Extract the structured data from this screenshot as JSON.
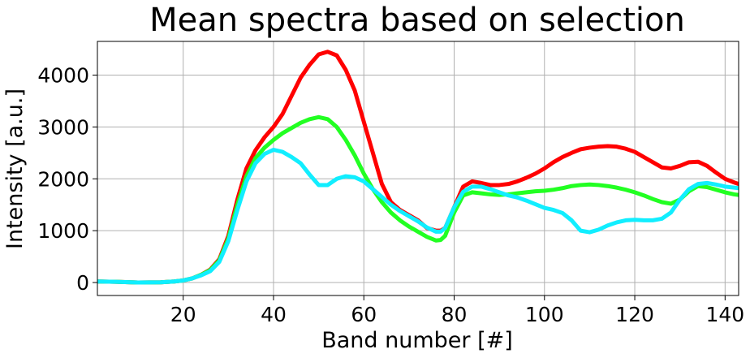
{
  "chart_data": {
    "type": "line",
    "title": "Mean spectra based on selection",
    "xlabel": "Band number [#]",
    "ylabel": "Intensity [a.u.]",
    "xlim": [
      1,
      143
    ],
    "ylim": [
      -250,
      4650
    ],
    "xticks": [
      20,
      40,
      60,
      80,
      100,
      120,
      140
    ],
    "yticks": [
      0,
      1000,
      2000,
      3000,
      4000
    ],
    "grid": true,
    "legend": "none",
    "series": [
      {
        "color": "#ff0000",
        "points": [
          [
            1,
            20
          ],
          [
            5,
            15
          ],
          [
            10,
            0
          ],
          [
            15,
            5
          ],
          [
            18,
            20
          ],
          [
            20,
            40
          ],
          [
            22,
            80
          ],
          [
            24,
            150
          ],
          [
            26,
            250
          ],
          [
            28,
            450
          ],
          [
            30,
            900
          ],
          [
            32,
            1600
          ],
          [
            34,
            2200
          ],
          [
            36,
            2550
          ],
          [
            38,
            2800
          ],
          [
            40,
            3000
          ],
          [
            42,
            3250
          ],
          [
            44,
            3600
          ],
          [
            46,
            3950
          ],
          [
            48,
            4200
          ],
          [
            50,
            4400
          ],
          [
            52,
            4450
          ],
          [
            54,
            4380
          ],
          [
            56,
            4100
          ],
          [
            58,
            3700
          ],
          [
            60,
            3100
          ],
          [
            62,
            2500
          ],
          [
            64,
            1900
          ],
          [
            66,
            1550
          ],
          [
            68,
            1400
          ],
          [
            70,
            1300
          ],
          [
            72,
            1200
          ],
          [
            74,
            1050
          ],
          [
            76,
            1000
          ],
          [
            77,
            1000
          ],
          [
            78,
            1050
          ],
          [
            80,
            1450
          ],
          [
            82,
            1850
          ],
          [
            84,
            1950
          ],
          [
            86,
            1920
          ],
          [
            88,
            1880
          ],
          [
            90,
            1880
          ],
          [
            92,
            1900
          ],
          [
            94,
            1950
          ],
          [
            96,
            2020
          ],
          [
            98,
            2100
          ],
          [
            100,
            2200
          ],
          [
            102,
            2320
          ],
          [
            104,
            2420
          ],
          [
            106,
            2500
          ],
          [
            108,
            2570
          ],
          [
            110,
            2600
          ],
          [
            112,
            2620
          ],
          [
            114,
            2630
          ],
          [
            116,
            2620
          ],
          [
            118,
            2580
          ],
          [
            120,
            2520
          ],
          [
            122,
            2420
          ],
          [
            124,
            2320
          ],
          [
            126,
            2220
          ],
          [
            128,
            2200
          ],
          [
            130,
            2250
          ],
          [
            132,
            2320
          ],
          [
            134,
            2330
          ],
          [
            136,
            2250
          ],
          [
            138,
            2120
          ],
          [
            140,
            2000
          ],
          [
            142,
            1930
          ],
          [
            143,
            1900
          ]
        ]
      },
      {
        "color": "#22ff22",
        "points": [
          [
            1,
            20
          ],
          [
            5,
            15
          ],
          [
            10,
            0
          ],
          [
            15,
            5
          ],
          [
            18,
            20
          ],
          [
            20,
            40
          ],
          [
            22,
            80
          ],
          [
            24,
            150
          ],
          [
            26,
            240
          ],
          [
            28,
            430
          ],
          [
            30,
            850
          ],
          [
            32,
            1500
          ],
          [
            34,
            2050
          ],
          [
            36,
            2400
          ],
          [
            38,
            2600
          ],
          [
            40,
            2750
          ],
          [
            42,
            2880
          ],
          [
            44,
            2980
          ],
          [
            46,
            3080
          ],
          [
            48,
            3150
          ],
          [
            50,
            3190
          ],
          [
            52,
            3150
          ],
          [
            54,
            3000
          ],
          [
            56,
            2750
          ],
          [
            58,
            2450
          ],
          [
            60,
            2100
          ],
          [
            62,
            1800
          ],
          [
            64,
            1550
          ],
          [
            66,
            1350
          ],
          [
            68,
            1200
          ],
          [
            70,
            1080
          ],
          [
            72,
            980
          ],
          [
            74,
            880
          ],
          [
            76,
            810
          ],
          [
            77,
            820
          ],
          [
            78,
            900
          ],
          [
            80,
            1350
          ],
          [
            82,
            1680
          ],
          [
            84,
            1740
          ],
          [
            86,
            1720
          ],
          [
            88,
            1700
          ],
          [
            90,
            1690
          ],
          [
            92,
            1700
          ],
          [
            94,
            1720
          ],
          [
            96,
            1740
          ],
          [
            98,
            1760
          ],
          [
            100,
            1770
          ],
          [
            102,
            1790
          ],
          [
            104,
            1820
          ],
          [
            106,
            1860
          ],
          [
            108,
            1880
          ],
          [
            110,
            1890
          ],
          [
            112,
            1880
          ],
          [
            114,
            1860
          ],
          [
            116,
            1830
          ],
          [
            118,
            1790
          ],
          [
            120,
            1740
          ],
          [
            122,
            1680
          ],
          [
            124,
            1610
          ],
          [
            126,
            1550
          ],
          [
            128,
            1520
          ],
          [
            130,
            1600
          ],
          [
            132,
            1760
          ],
          [
            134,
            1860
          ],
          [
            136,
            1840
          ],
          [
            138,
            1790
          ],
          [
            140,
            1740
          ],
          [
            142,
            1700
          ],
          [
            143,
            1690
          ]
        ]
      },
      {
        "color": "#11eeff",
        "points": [
          [
            1,
            20
          ],
          [
            5,
            15
          ],
          [
            10,
            0
          ],
          [
            15,
            5
          ],
          [
            18,
            20
          ],
          [
            20,
            40
          ],
          [
            22,
            80
          ],
          [
            24,
            140
          ],
          [
            26,
            220
          ],
          [
            28,
            400
          ],
          [
            30,
            800
          ],
          [
            32,
            1400
          ],
          [
            34,
            1950
          ],
          [
            36,
            2300
          ],
          [
            38,
            2480
          ],
          [
            40,
            2560
          ],
          [
            42,
            2520
          ],
          [
            44,
            2420
          ],
          [
            46,
            2300
          ],
          [
            48,
            2080
          ],
          [
            50,
            1880
          ],
          [
            52,
            1880
          ],
          [
            54,
            2000
          ],
          [
            56,
            2050
          ],
          [
            58,
            2030
          ],
          [
            60,
            1950
          ],
          [
            62,
            1800
          ],
          [
            64,
            1650
          ],
          [
            66,
            1500
          ],
          [
            68,
            1380
          ],
          [
            70,
            1280
          ],
          [
            72,
            1180
          ],
          [
            74,
            1060
          ],
          [
            76,
            980
          ],
          [
            77,
            980
          ],
          [
            78,
            1050
          ],
          [
            80,
            1450
          ],
          [
            82,
            1750
          ],
          [
            84,
            1850
          ],
          [
            86,
            1850
          ],
          [
            88,
            1800
          ],
          [
            90,
            1740
          ],
          [
            92,
            1680
          ],
          [
            94,
            1640
          ],
          [
            96,
            1580
          ],
          [
            98,
            1510
          ],
          [
            100,
            1440
          ],
          [
            102,
            1400
          ],
          [
            104,
            1340
          ],
          [
            106,
            1200
          ],
          [
            108,
            1000
          ],
          [
            110,
            970
          ],
          [
            112,
            1020
          ],
          [
            114,
            1100
          ],
          [
            116,
            1160
          ],
          [
            118,
            1200
          ],
          [
            120,
            1210
          ],
          [
            122,
            1200
          ],
          [
            124,
            1200
          ],
          [
            126,
            1230
          ],
          [
            128,
            1350
          ],
          [
            130,
            1600
          ],
          [
            132,
            1800
          ],
          [
            134,
            1900
          ],
          [
            136,
            1920
          ],
          [
            138,
            1890
          ],
          [
            140,
            1850
          ],
          [
            142,
            1830
          ],
          [
            143,
            1820
          ]
        ]
      }
    ]
  }
}
